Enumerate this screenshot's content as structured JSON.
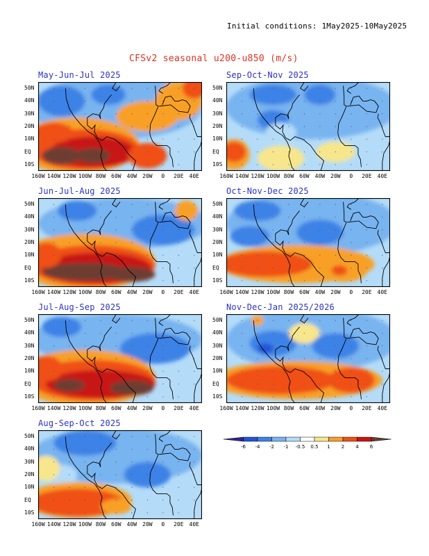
{
  "header": {
    "initial_conditions": "Initial conditions: 1May2025-10May2025",
    "main_title": "CFSv2 seasonal u200-u850 (m/s)"
  },
  "lat_labels": [
    "50N",
    "40N",
    "30N",
    "20N",
    "10N",
    "EQ",
    "10S"
  ],
  "lon_labels": [
    "160W",
    "140W",
    "120W",
    "100W",
    "80W",
    "60W",
    "40W",
    "20W",
    "0",
    "20E",
    "40E"
  ],
  "panels": [
    {
      "id": "mjj",
      "title": "May-Jun-Jul 2025",
      "pattern": "strong_west_pos_ne_pos"
    },
    {
      "id": "jja",
      "title": "Jun-Jul-Aug 2025",
      "pattern": "strong_band"
    },
    {
      "id": "jas",
      "title": "Jul-Aug-Sep 2025",
      "pattern": "strong_band_2"
    },
    {
      "id": "aso",
      "title": "Aug-Sep-Oct 2025",
      "pattern": "moderate_band"
    },
    {
      "id": "son",
      "title": "Sep-Oct-Nov 2025",
      "pattern": "weak"
    },
    {
      "id": "ond",
      "title": "Oct-Nov-Dec 2025",
      "pattern": "moderate_tropics"
    },
    {
      "id": "ndj",
      "title": "Nov-Dec-Jan 2025/2026",
      "pattern": "moderate_tropics_2"
    }
  ],
  "colorbar": {
    "ticks": [
      "-6",
      "-4",
      "-2",
      "-1",
      "-0.5",
      "0.5",
      "1",
      "2",
      "4",
      "6"
    ],
    "colors": [
      "#3a1f96",
      "#2154d8",
      "#3c82e6",
      "#78b4f0",
      "#b4dcf8",
      "#ffffff",
      "#f8e68c",
      "#f8a028",
      "#f05014",
      "#c81414",
      "#6e3c32"
    ]
  }
}
